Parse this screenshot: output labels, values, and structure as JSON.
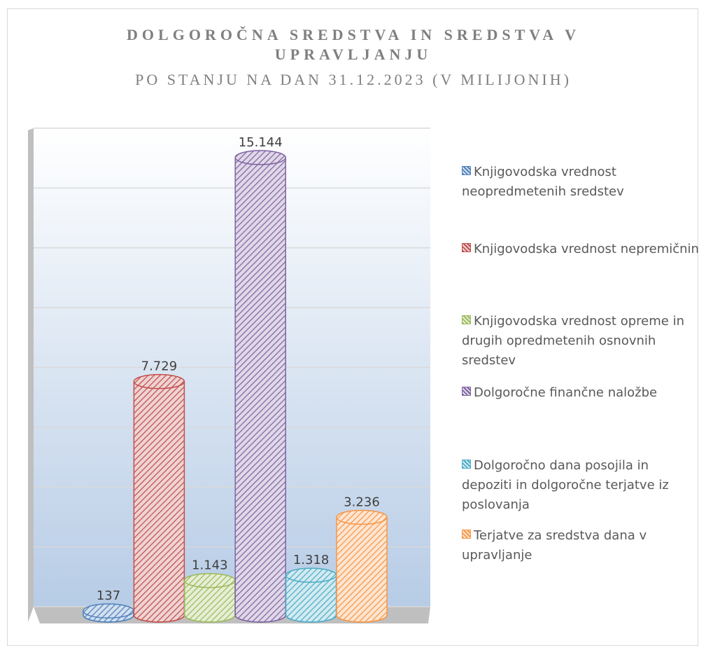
{
  "chart_data": {
    "type": "bar",
    "title": "DOLGOROČNA SREDSTVA IN SREDSTVA V UPRAVLJANJU",
    "subtitle": "PO STANJU NA DAN 31.12.2023 (V MILIJONIH)",
    "categories": [
      "Knjigovodska vrednost neopredmetenih sredstev",
      "Knjigovodska vrednost nepremičnin",
      "Knjigovodska vrednost opreme in drugih opredmetenih osnovnih sredstev",
      "Dolgoročne finančne naložbe",
      "Dolgoročno dana posojila in depoziti in dolgoročne terjatve iz poslovanja",
      "Terjatve za sredstva dana v upravljanje"
    ],
    "values": [
      137,
      7729,
      1143,
      15144,
      1318,
      3236
    ],
    "value_labels": [
      "137",
      "7.729",
      "1.143",
      "15.144",
      "1.318",
      "3.236"
    ],
    "colors": [
      "#4f81bd",
      "#c0504d",
      "#9bbb59",
      "#8064a2",
      "#4bacc6",
      "#f79646"
    ],
    "ylim": [
      0,
      16000
    ],
    "yticks": [
      0,
      2000,
      4000,
      6000,
      8000,
      10000,
      12000,
      14000,
      16000
    ],
    "grid": true,
    "legend": "right"
  }
}
